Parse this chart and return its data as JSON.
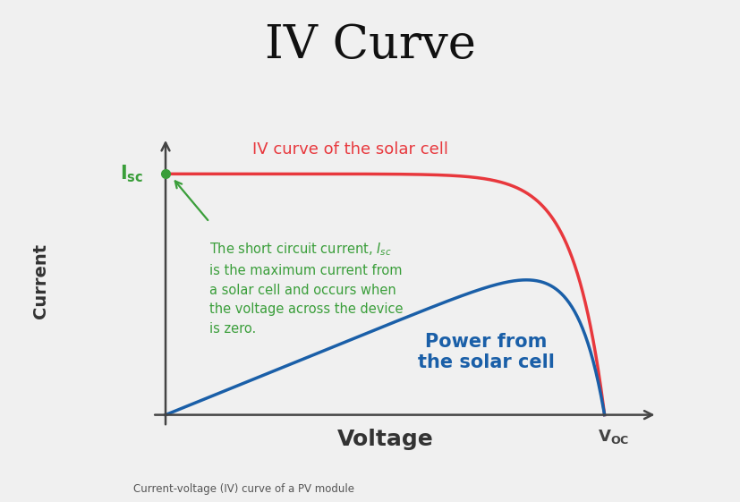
{
  "title": "IV Curve",
  "title_fontsize": 38,
  "title_color": "#111111",
  "background_color": "#f0f0f0",
  "iv_curve_label": "IV curve of the solar cell",
  "iv_curve_color": "#e8383d",
  "iv_curve_labelsize": 13,
  "power_curve_label": "Power from\nthe solar cell",
  "power_curve_color": "#1a5fa8",
  "power_curve_labelsize": 15,
  "isc_color": "#3a9e3a",
  "voc_color": "#444444",
  "xlabel": "Voltage",
  "xlabel_fontsize": 18,
  "ylabel": "Current",
  "ylabel_fontsize": 14,
  "annotation_color": "#3a9e3a",
  "annotation_fontsize": 10.5,
  "caption": "Current-voltage (IV) curve of a PV module",
  "caption_fontsize": 8.5,
  "arrow_color": "#3a9e3a",
  "dot_color": "#3a9e3a",
  "iv_linewidth": 2.5,
  "power_linewidth": 2.5,
  "axis_color": "#444444",
  "axis_linewidth": 1.8
}
